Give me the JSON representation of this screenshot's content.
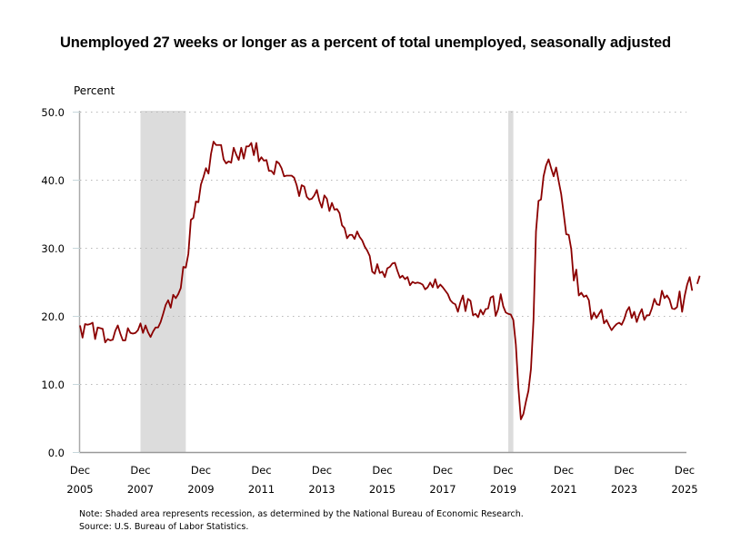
{
  "chart_data": {
    "type": "line",
    "title": "Unemployed 27 weeks or longer as a percent of total unemployed, seasonally adjusted",
    "ylabel": "Percent",
    "xlabel": "",
    "ylim": [
      0,
      50
    ],
    "yticks": [
      "0.0",
      "10.0",
      "20.0",
      "30.0",
      "40.0",
      "50.0"
    ],
    "ytick_values": [
      0,
      10,
      20,
      30,
      40,
      50
    ],
    "xticks": [
      {
        "month": "Dec",
        "year": "2005"
      },
      {
        "month": "Dec",
        "year": "2007"
      },
      {
        "month": "Dec",
        "year": "2009"
      },
      {
        "month": "Dec",
        "year": "2011"
      },
      {
        "month": "Dec",
        "year": "2013"
      },
      {
        "month": "Dec",
        "year": "2015"
      },
      {
        "month": "Dec",
        "year": "2017"
      },
      {
        "month": "Dec",
        "year": "2019"
      },
      {
        "month": "Dec",
        "year": "2021"
      },
      {
        "month": "Dec",
        "year": "2023"
      },
      {
        "month": "Dec",
        "year": "2025"
      }
    ],
    "x_start": "2005-12",
    "x_end": "2025-12",
    "grid": "horizontal dotted",
    "line_color": "#8b0000",
    "recession_color": "#dcdcdc",
    "recessions": [
      {
        "start": "2007-12",
        "end": "2009-06"
      },
      {
        "start": "2020-02",
        "end": "2020-04"
      }
    ],
    "series": [
      {
        "name": "Unemployed 27 weeks or longer (% of total unemployed)",
        "start": "2005-12",
        "frequency": "monthly",
        "values": [
          18.6,
          16.8,
          18.8,
          18.7,
          18.8,
          19.0,
          16.6,
          18.3,
          18.2,
          18.1,
          16.1,
          16.6,
          16.4,
          16.5,
          17.8,
          18.6,
          17.4,
          16.4,
          16.4,
          18.2,
          17.5,
          17.4,
          17.5,
          17.9,
          18.9,
          17.5,
          18.6,
          17.6,
          16.9,
          17.7,
          18.3,
          18.3,
          19.1,
          20.3,
          21.6,
          22.3,
          21.2,
          23.1,
          22.6,
          23.2,
          24.1,
          27.2,
          27.1,
          29.1,
          34.1,
          34.4,
          36.8,
          36.7,
          39.3,
          40.4,
          41.7,
          40.9,
          43.8,
          45.6,
          45.1,
          45.1,
          45.1,
          43.0,
          42.4,
          42.7,
          42.5,
          44.7,
          43.7,
          42.9,
          44.7,
          43.1,
          44.9,
          44.9,
          45.4,
          43.6,
          45.4,
          42.7,
          43.3,
          42.8,
          42.9,
          41.3,
          41.3,
          40.8,
          42.7,
          42.4,
          41.7,
          40.5,
          40.6,
          40.6,
          40.6,
          40.3,
          39.2,
          37.6,
          39.2,
          39.0,
          37.5,
          37.1,
          37.2,
          37.7,
          38.5,
          36.9,
          35.9,
          37.7,
          37.2,
          35.4,
          36.6,
          35.6,
          35.7,
          35.1,
          33.3,
          32.9,
          31.4,
          31.9,
          31.9,
          31.3,
          32.4,
          31.6,
          31.1,
          30.2,
          29.6,
          28.8,
          26.5,
          26.2,
          27.6,
          26.3,
          26.5,
          25.7,
          27.0,
          27.2,
          27.7,
          27.8,
          26.6,
          25.6,
          25.9,
          25.4,
          25.7,
          24.5,
          25.0,
          24.8,
          24.9,
          24.8,
          24.6,
          23.9,
          24.2,
          24.9,
          24.2,
          25.4,
          24.1,
          24.6,
          24.2,
          23.7,
          23.2,
          22.3,
          21.9,
          21.7,
          20.6,
          22.0,
          23.0,
          20.7,
          22.5,
          22.2,
          20.1,
          20.3,
          19.8,
          20.9,
          20.2,
          21.0,
          21.1,
          22.7,
          22.9,
          20.0,
          21.0,
          23.2,
          21.4,
          20.5,
          20.3,
          20.2,
          19.4,
          15.8,
          9.5,
          4.8,
          5.6,
          7.4,
          9.0,
          12.2,
          19.3,
          32.4,
          36.9,
          37.1,
          40.5,
          42.1,
          43.0,
          41.7,
          40.5,
          41.8,
          39.8,
          37.9,
          35.0,
          32.0,
          31.9,
          29.8,
          25.2,
          26.8,
          23.0,
          23.4,
          22.8,
          23.0,
          22.3,
          19.5,
          20.5,
          19.7,
          20.3,
          20.9,
          18.9,
          19.4,
          18.6,
          17.9,
          18.4,
          18.8,
          19.0,
          18.7,
          19.5,
          20.7,
          21.3,
          19.7,
          20.6,
          19.1,
          20.2,
          21.0,
          19.4,
          20.1,
          20.1,
          21.1,
          22.5,
          21.7,
          21.6,
          23.7,
          22.6,
          23.0,
          22.4,
          21.1,
          21.0,
          21.3,
          23.6,
          20.6,
          22.9,
          24.6,
          25.7,
          23.7,
          null,
          24.7,
          25.9
        ]
      }
    ]
  },
  "notes": {
    "note": "Note: Shaded area represents recession, as determined by the National Bureau of Economic Research.",
    "source": "Source: U.S. Bureau of Labor Statistics."
  }
}
